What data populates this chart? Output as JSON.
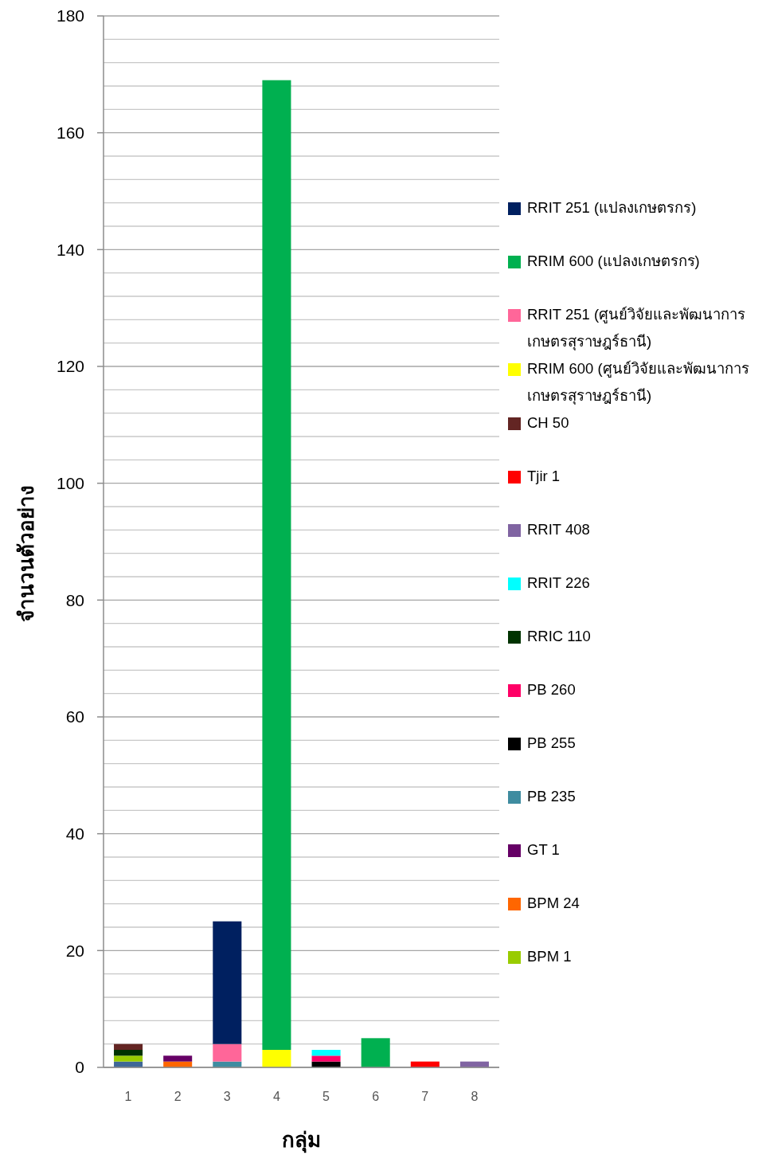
{
  "chart_data": {
    "type": "bar",
    "stacked": true,
    "xlabel": "กลุ่ม",
    "ylabel": "จำนวนตัวอย่าง",
    "categories": [
      "1",
      "2",
      "3",
      "4",
      "5",
      "6",
      "7",
      "8"
    ],
    "ylim": [
      0,
      180
    ],
    "yticks": [
      0,
      {
        "value": 4,
        "label": null
      },
      {
        "value": 8,
        "label": null
      },
      {
        "value": 12,
        "label": null
      },
      {
        "value": 16,
        "label": null
      },
      20,
      {
        "value": 24,
        "label": null
      },
      {
        "value": 28,
        "label": null
      },
      {
        "value": 32,
        "label": null
      },
      {
        "value": 36,
        "label": null
      },
      40,
      {
        "value": 44,
        "label": null
      },
      {
        "value": 48,
        "label": null
      },
      {
        "value": 52,
        "label": null
      },
      {
        "value": 56,
        "label": null
      },
      60,
      {
        "value": 64,
        "label": null
      },
      {
        "value": 68,
        "label": null
      },
      {
        "value": 72,
        "label": null
      },
      {
        "value": 76,
        "label": null
      },
      80,
      {
        "value": 84,
        "label": null
      },
      {
        "value": 88,
        "label": null
      },
      {
        "value": 92,
        "label": null
      },
      {
        "value": 96,
        "label": null
      },
      100,
      {
        "value": 104,
        "label": null
      },
      {
        "value": 108,
        "label": null
      },
      {
        "value": 112,
        "label": null
      },
      {
        "value": 116,
        "label": null
      },
      120,
      {
        "value": 124,
        "label": null
      },
      {
        "value": 128,
        "label": null
      },
      {
        "value": 132,
        "label": null
      },
      {
        "value": 136,
        "label": null
      },
      140,
      {
        "value": 144,
        "label": null
      },
      {
        "value": 148,
        "label": null
      },
      {
        "value": 152,
        "label": null
      },
      {
        "value": 156,
        "label": null
      },
      160,
      {
        "value": 164,
        "label": null
      },
      {
        "value": 168,
        "label": null
      },
      {
        "value": 172,
        "label": null
      },
      {
        "value": 176,
        "label": null
      },
      180
    ],
    "grid": "y",
    "legend": "right",
    "series": [
      {
        "color": "#3f6797",
        "values": [
          1,
          0,
          0,
          0,
          0,
          0,
          0,
          0
        ]
      },
      {
        "name": "BPM 1",
        "color": "#99cc00",
        "values": [
          1,
          0,
          0,
          0,
          0,
          0,
          0,
          0
        ]
      },
      {
        "name": "BPM 24",
        "color": "#ff6600",
        "values": [
          0,
          1,
          0,
          0,
          0,
          0,
          0,
          0
        ]
      },
      {
        "name": "GT 1",
        "color": "#660066",
        "values": [
          0,
          1,
          0,
          0,
          0,
          0,
          0,
          0
        ]
      },
      {
        "name": "PB 235",
        "color": "#3f8ca0",
        "values": [
          0,
          0,
          1,
          0,
          0,
          0,
          0,
          0
        ]
      },
      {
        "name": "PB 255",
        "color": "#000000",
        "values": [
          0,
          0,
          0,
          0,
          1,
          0,
          0,
          0
        ]
      },
      {
        "name": "PB 260",
        "color": "#ff0066",
        "values": [
          0,
          0,
          0,
          0,
          1,
          0,
          0,
          0
        ]
      },
      {
        "name": "RRIC 110",
        "color": "#003300",
        "values": [
          1,
          0,
          0,
          0,
          0,
          0,
          0,
          0
        ]
      },
      {
        "name": "RRIT 226",
        "color": "#00ffff",
        "values": [
          0,
          0,
          0,
          0,
          1,
          0,
          0,
          0
        ]
      },
      {
        "name": "RRIT 408",
        "color": "#8064a2",
        "values": [
          0,
          0,
          0,
          0,
          0,
          0,
          0,
          1
        ]
      },
      {
        "name": "Tjir 1",
        "color": "#ff0000",
        "values": [
          0,
          0,
          0,
          0,
          0,
          0,
          1,
          0
        ]
      },
      {
        "name": "CH 50",
        "color": "#632523",
        "values": [
          1,
          0,
          0,
          0,
          0,
          0,
          0,
          0
        ]
      },
      {
        "name": "RRIM 600 (ศูนย์วิจัยและพัฒนาการเกษตรสุราษฎร์ธานี)",
        "color": "#ffff00",
        "values": [
          0,
          0,
          0,
          3,
          0,
          0,
          0,
          0
        ]
      },
      {
        "name": "RRIT 251 (ศูนย์วิจัยและพัฒนาการเกษตรสุราษฎร์ธานี)",
        "color": "#ff6699",
        "values": [
          0,
          0,
          3,
          0,
          0,
          0,
          0,
          0
        ]
      },
      {
        "name": "RRIM 600 (แปลงเกษตรกร)",
        "color": "#00b050",
        "values": [
          0,
          0,
          0,
          166,
          0,
          5,
          0,
          0
        ]
      },
      {
        "name": "RRIT 251 (แปลงเกษตรกร)",
        "color": "#002060",
        "values": [
          0,
          0,
          21,
          0,
          0,
          0,
          0,
          0
        ]
      }
    ]
  }
}
